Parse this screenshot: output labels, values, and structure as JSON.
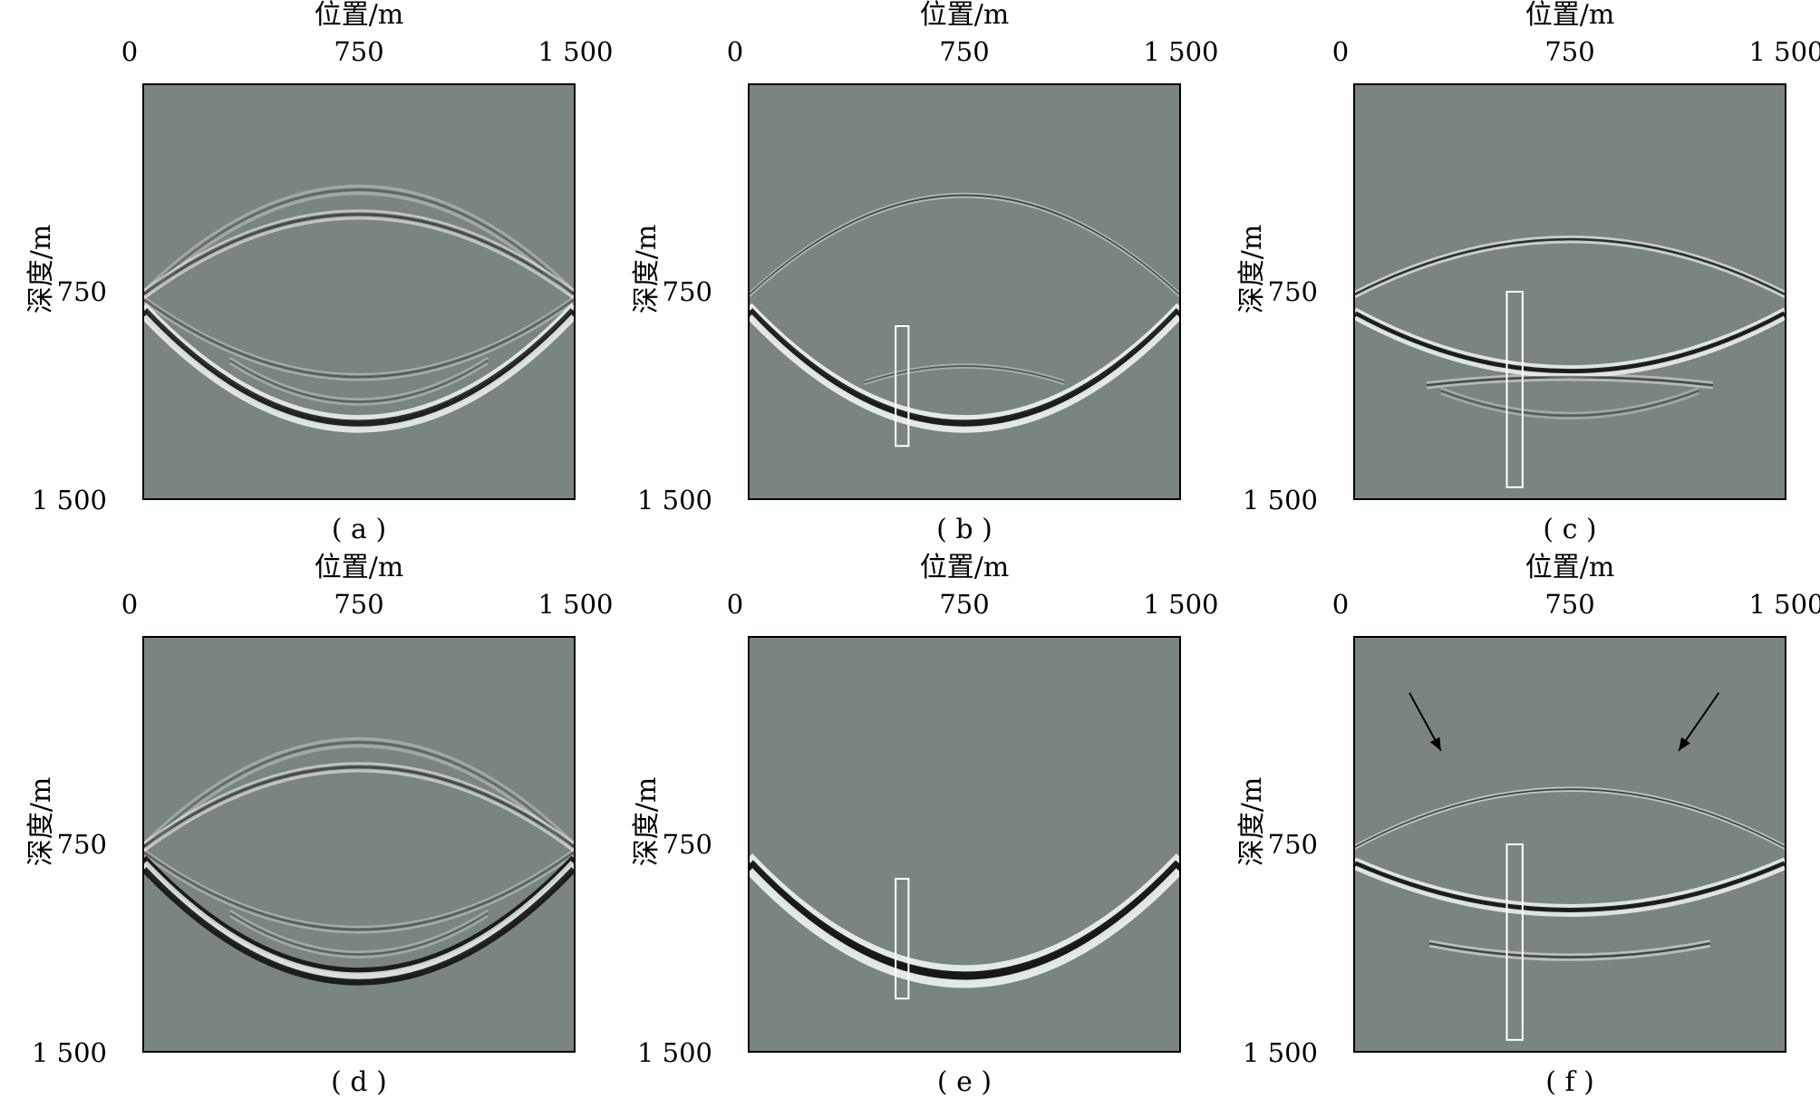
{
  "panels": [
    {
      "id": "a",
      "caption": "( a )",
      "xlabel": "位置/m",
      "ylabel": "深度/m",
      "xticks": [
        "0",
        "750",
        "1 500"
      ],
      "yticks": [
        "750",
        "1 500"
      ],
      "x_origin": "0",
      "box": null,
      "arrows": false
    },
    {
      "id": "b",
      "caption": "( b )",
      "xlabel": "位置/m",
      "ylabel": "深度/m",
      "xticks": [
        "0",
        "750",
        "1 500"
      ],
      "yticks": [
        "750",
        "1 500"
      ],
      "x_origin": "0",
      "box": [
        510,
        875,
        555,
        1310
      ],
      "arrows": false
    },
    {
      "id": "c",
      "caption": "( c )",
      "xlabel": "位置/m",
      "ylabel": "深度/m",
      "xticks": [
        "0",
        "750",
        "1 500"
      ],
      "yticks": [
        "750",
        "1 500"
      ],
      "x_origin": "0",
      "box": [
        530,
        750,
        585,
        1460
      ],
      "arrows": false
    },
    {
      "id": "d",
      "caption": "( d )",
      "xlabel": "位置/m",
      "ylabel": "深度/m",
      "xticks": [
        "0",
        "750",
        "1 500"
      ],
      "yticks": [
        "750",
        "1 500"
      ],
      "x_origin": "0",
      "box": null,
      "arrows": false
    },
    {
      "id": "e",
      "caption": "( e )",
      "xlabel": "位置/m",
      "ylabel": "深度/m",
      "xticks": [
        "0",
        "750",
        "1 500"
      ],
      "yticks": [
        "750",
        "1 500"
      ],
      "x_origin": "0",
      "box": [
        510,
        875,
        555,
        1310
      ],
      "arrows": false
    },
    {
      "id": "f",
      "caption": "( f )",
      "xlabel": "位置/m",
      "ylabel": "深度/m",
      "xticks": [
        "0",
        "750",
        "1 500"
      ],
      "yticks": [
        "750",
        "1 500"
      ],
      "x_origin": "0",
      "box": [
        530,
        750,
        585,
        1460
      ],
      "arrows": true
    }
  ],
  "colors": {
    "background": "#7a8583",
    "dark": "#111111",
    "light": "#e9eeee",
    "box": "#ffffff"
  }
}
